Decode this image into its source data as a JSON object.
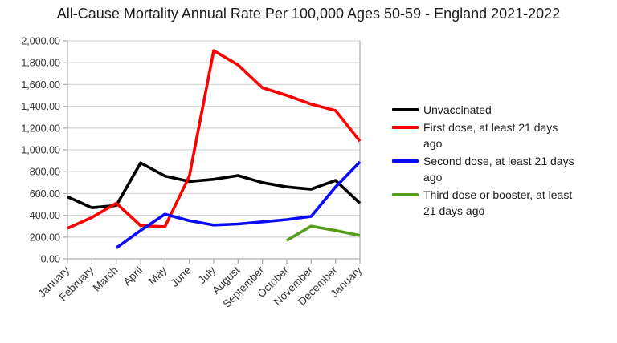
{
  "background": "#ffffff",
  "chart_data": {
    "type": "line",
    "title": "All-Cause Mortality Annual Rate Per 100,000 Ages 50-59 - England 2021-2022",
    "categories": [
      "January",
      "February",
      "March",
      "April",
      "May",
      "June",
      "July",
      "August",
      "September",
      "October",
      "November",
      "December",
      "January"
    ],
    "xlabel": "",
    "ylabel": "",
    "ylim": [
      0,
      2000
    ],
    "y_tick_step": 200,
    "y_ticks_top_to_bottom": [
      "2,000.00",
      "1,800.00",
      "1,600.00",
      "1,400.00",
      "1,200.00",
      "1,000.00",
      "800.00",
      "600.00",
      "400.00",
      "200.00",
      "0.00"
    ],
    "grid": "horizontal",
    "legend_position": "right",
    "series": [
      {
        "key": "unvaccinated",
        "name": "Unvaccinated",
        "label_lines": [
          "Unvaccinated"
        ],
        "color": "#000000",
        "values": [
          570,
          470,
          490,
          880,
          760,
          710,
          730,
          765,
          700,
          660,
          640,
          720,
          510
        ]
      },
      {
        "key": "first-dose",
        "name": "First dose, at least 21 days ago",
        "label_lines": [
          "First dose, at least 21 days",
          "ago"
        ],
        "color": "#fe0000",
        "values": [
          280,
          380,
          510,
          305,
          295,
          760,
          1910,
          1780,
          1570,
          1500,
          1420,
          1360,
          1080
        ]
      },
      {
        "key": "second-dose",
        "name": "Second dose, at least 21 days ago",
        "label_lines": [
          "Second dose, at least 21 days",
          "ago"
        ],
        "color": "#0a0aff",
        "values": [
          null,
          null,
          100,
          260,
          410,
          350,
          310,
          320,
          340,
          360,
          390,
          660,
          890
        ]
      },
      {
        "key": "third-dose",
        "name": "Third dose or booster, at least 21 days ago",
        "label_lines": [
          "Third dose or booster, at least",
          "21 days ago"
        ],
        "color": "#579d1c",
        "values": [
          null,
          null,
          null,
          null,
          null,
          null,
          null,
          null,
          null,
          170,
          300,
          260,
          215
        ]
      }
    ],
    "colors": {
      "gridline": "#d6d6d6",
      "axis": "#b3b3b3",
      "tick_label": "#333333"
    }
  }
}
